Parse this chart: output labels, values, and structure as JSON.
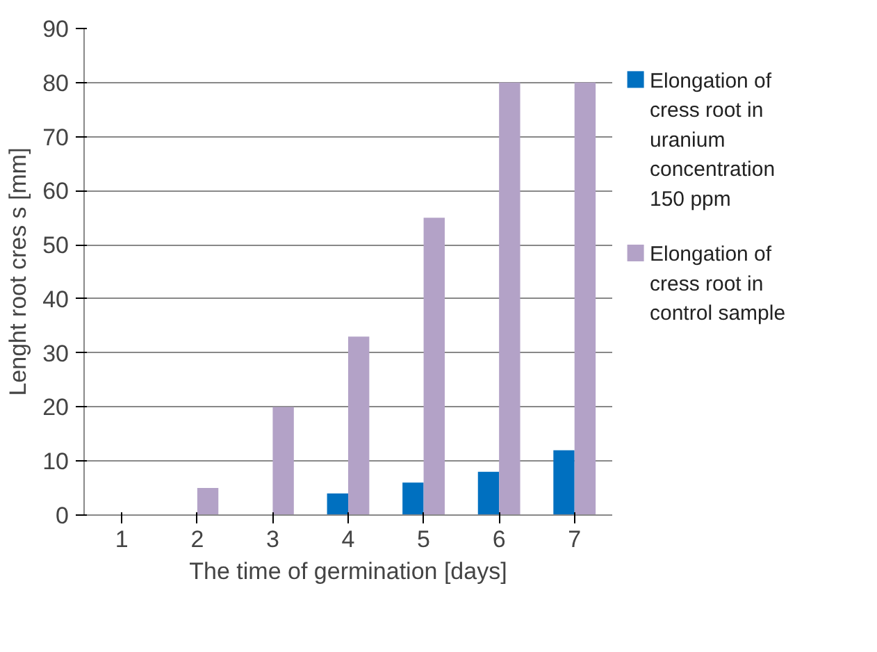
{
  "chart_data": {
    "type": "bar",
    "xlabel": "The time of germination [days]",
    "ylabel": "Lenght root cres s [mm]",
    "categories": [
      "1",
      "2",
      "3",
      "4",
      "5",
      "6",
      "7"
    ],
    "series": [
      {
        "name": "Elongation of cress root in uranium concentration 150 ppm",
        "color": "#0070c0",
        "values": [
          0,
          0,
          0,
          4,
          6,
          8,
          12
        ]
      },
      {
        "name": "Elongation of cress root in control sample",
        "color": "#b3a2c7",
        "values": [
          0,
          5,
          20,
          33,
          55,
          80,
          80
        ]
      }
    ],
    "ylim": [
      0,
      90
    ],
    "yticks": [
      0,
      10,
      20,
      30,
      40,
      50,
      60,
      70,
      80,
      90
    ],
    "grid": "y",
    "legend": "right"
  }
}
